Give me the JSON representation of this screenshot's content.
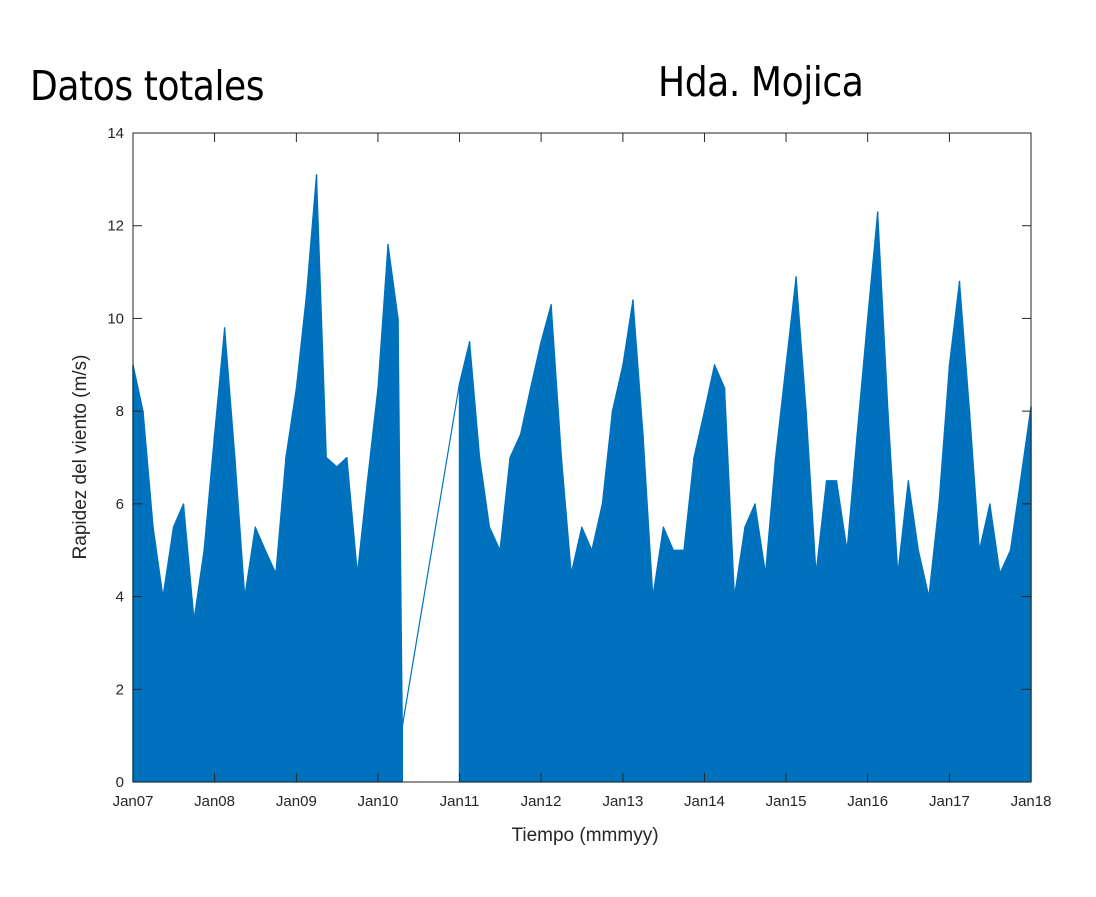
{
  "header": {
    "left_title": "Datos totales",
    "right_title": "Hda. Mojica"
  },
  "chart_data": {
    "type": "line",
    "xlabel": "Tiempo (mmmyy)",
    "ylabel": "Rapidez del viento (m/s)",
    "ylim": [
      0,
      14
    ],
    "yticks": [
      0,
      2,
      4,
      6,
      8,
      10,
      12,
      14
    ],
    "xlim": [
      "2007-01-01",
      "2018-01-01"
    ],
    "xticks": [
      "2007-01-01",
      "2008-01-01",
      "2009-01-01",
      "2010-01-01",
      "2011-01-01",
      "2012-01-01",
      "2013-01-01",
      "2014-01-01",
      "2015-01-01",
      "2016-01-01",
      "2017-01-01",
      "2018-01-01"
    ],
    "xticklabels": [
      "Jan07",
      "Jan08",
      "Jan09",
      "Jan10",
      "Jan11",
      "Jan12",
      "Jan13",
      "Jan14",
      "Jan15",
      "Jan16",
      "Jan17",
      "Jan18"
    ],
    "series_color": "#0072BD",
    "grid": false,
    "series": [
      {
        "x": [
          "2007-01-01",
          "2007-02-15",
          "2007-04-01",
          "2007-05-15",
          "2007-07-01",
          "2007-08-15",
          "2007-10-01",
          "2007-11-15",
          "2008-01-01",
          "2008-02-15",
          "2008-04-01",
          "2008-05-15",
          "2008-07-01",
          "2008-08-15",
          "2008-10-01",
          "2008-11-15",
          "2009-01-01",
          "2009-02-15",
          "2009-04-01",
          "2009-05-15",
          "2009-07-01",
          "2009-08-15",
          "2009-10-01",
          "2009-11-15",
          "2010-01-01",
          "2010-02-15",
          "2010-04-01",
          "2010-04-20",
          "2011-01-01",
          "2011-02-15",
          "2011-04-01",
          "2011-05-15",
          "2011-07-01",
          "2011-08-15",
          "2011-10-01",
          "2011-11-15",
          "2012-01-01",
          "2012-02-15",
          "2012-04-01",
          "2012-05-15",
          "2012-07-01",
          "2012-08-15",
          "2012-10-01",
          "2012-11-15",
          "2013-01-01",
          "2013-02-15",
          "2013-04-01",
          "2013-05-15",
          "2013-07-01",
          "2013-08-15",
          "2013-10-01",
          "2013-11-15",
          "2014-01-01",
          "2014-02-15",
          "2014-04-01",
          "2014-05-15",
          "2014-07-01",
          "2014-08-15",
          "2014-10-01",
          "2014-11-15",
          "2015-01-01",
          "2015-02-15",
          "2015-04-01",
          "2015-05-15",
          "2015-07-01",
          "2015-08-15",
          "2015-10-01",
          "2015-11-15",
          "2016-01-01",
          "2016-02-15",
          "2016-04-01",
          "2016-05-15",
          "2016-07-01",
          "2016-08-15",
          "2016-10-01",
          "2016-11-15",
          "2017-01-01",
          "2017-02-15",
          "2017-04-01",
          "2017-05-15",
          "2017-07-01",
          "2017-08-15",
          "2017-10-01",
          "2017-11-15",
          "2018-01-01"
        ],
        "y": [
          9.0,
          8.0,
          5.5,
          4.0,
          5.5,
          6.0,
          3.5,
          5.0,
          7.5,
          9.8,
          7.0,
          4.0,
          5.5,
          5.0,
          4.5,
          7.0,
          8.5,
          10.5,
          13.1,
          7.0,
          6.8,
          7.0,
          4.5,
          6.5,
          8.5,
          11.6,
          10.0,
          1.2,
          8.6,
          9.5,
          7.0,
          5.5,
          5.0,
          7.0,
          7.5,
          8.5,
          9.5,
          10.3,
          7.0,
          4.5,
          5.5,
          5.0,
          6.0,
          8.0,
          9.0,
          10.4,
          7.5,
          4.0,
          5.5,
          5.0,
          5.0,
          7.0,
          8.0,
          9.0,
          8.5,
          4.0,
          5.5,
          6.0,
          4.5,
          7.0,
          9.0,
          10.9,
          8.0,
          4.5,
          6.5,
          6.5,
          5.0,
          7.5,
          10.0,
          12.3,
          8.0,
          4.5,
          6.5,
          5.0,
          4.0,
          6.0,
          9.0,
          10.8,
          8.0,
          5.0,
          6.0,
          4.5,
          5.0,
          6.5,
          8.1
        ]
      }
    ]
  }
}
